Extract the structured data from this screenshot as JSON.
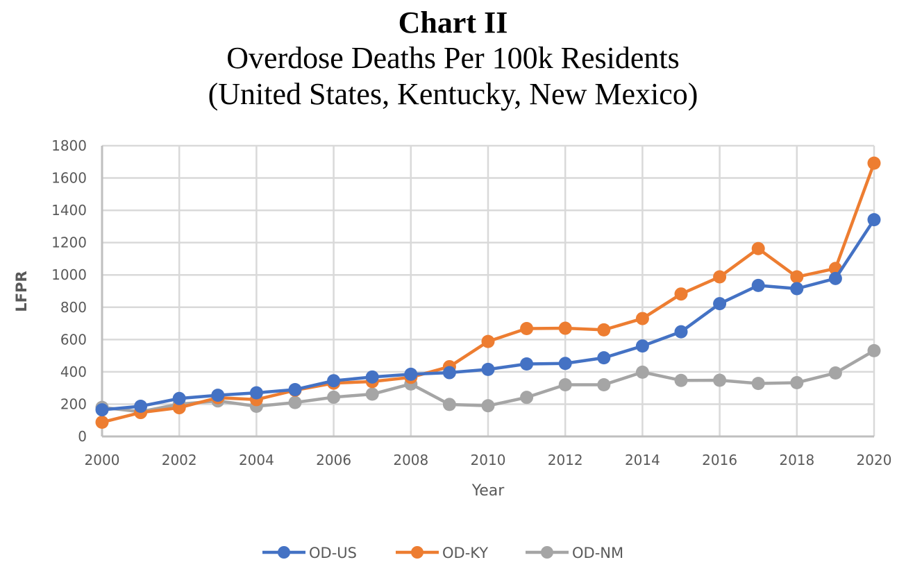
{
  "chart_data": {
    "type": "line",
    "title": "Chart II",
    "subtitle_lines": [
      "Overdose Deaths Per 100k Residents",
      "(United States, Kentucky, New Mexico)"
    ],
    "xlabel": "Year",
    "ylabel": "LFPR",
    "x": [
      2000,
      2001,
      2002,
      2003,
      2004,
      2005,
      2006,
      2007,
      2008,
      2009,
      2010,
      2011,
      2012,
      2013,
      2014,
      2015,
      2016,
      2017,
      2018,
      2019,
      2020
    ],
    "xlim": [
      2000,
      2020
    ],
    "x_ticks": [
      2000,
      2002,
      2004,
      2006,
      2008,
      2010,
      2012,
      2014,
      2016,
      2018,
      2020
    ],
    "ylim": [
      0,
      1800
    ],
    "y_ticks": [
      0,
      200,
      400,
      600,
      800,
      1000,
      1200,
      1400,
      1600,
      1800
    ],
    "grid": true,
    "legend_position": "bottom",
    "series": [
      {
        "name": "OD-US",
        "color": "#4472C4",
        "values": [
          165,
          187,
          235,
          255,
          270,
          290,
          345,
          368,
          385,
          395,
          415,
          449,
          452,
          487,
          560,
          648,
          822,
          935,
          915,
          978,
          1342
        ]
      },
      {
        "name": "OD-KY",
        "color": "#ED7D31",
        "values": [
          88,
          148,
          178,
          240,
          228,
          286,
          330,
          340,
          366,
          432,
          588,
          668,
          670,
          660,
          730,
          882,
          988,
          1163,
          988,
          1040,
          1692
        ]
      },
      {
        "name": "OD-NM",
        "color": "#A5A5A5",
        "values": [
          180,
          153,
          200,
          220,
          187,
          210,
          243,
          262,
          325,
          198,
          190,
          242,
          320,
          320,
          398,
          347,
          348,
          328,
          333,
          393,
          531
        ]
      }
    ]
  }
}
